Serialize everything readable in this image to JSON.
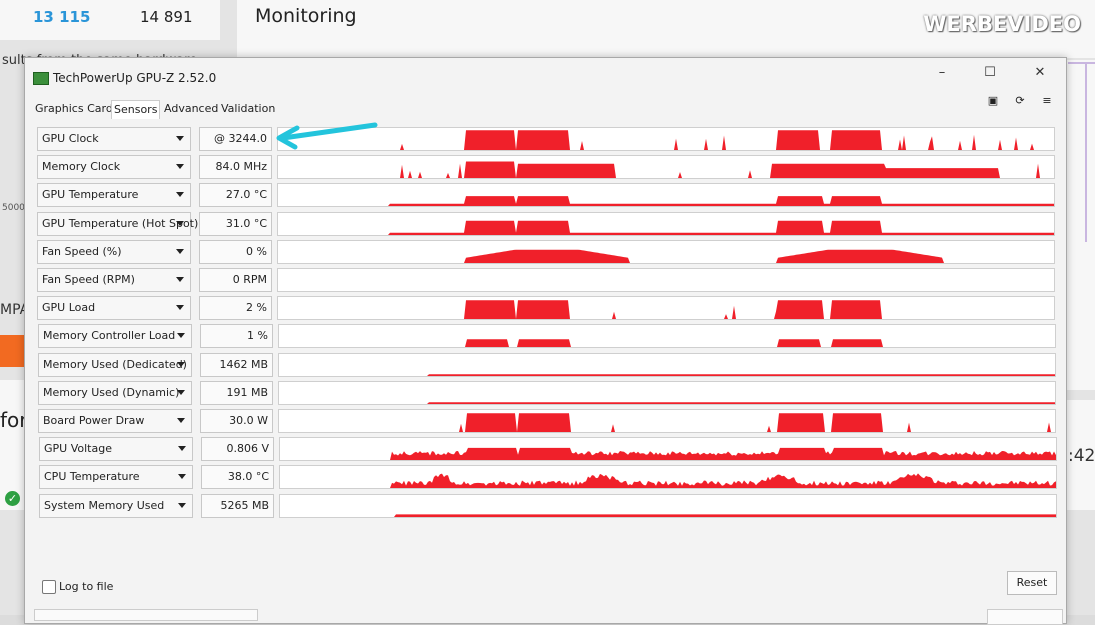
{
  "background": {
    "score_left": "13 115",
    "score_right": "14 891",
    "results_text": "sults from the same hardware",
    "section_title": "Monitoring",
    "axis_label": "5000",
    "mpa_text": "MPA",
    "for_text": "for",
    "time_text": ":42",
    "watermark": "WERBEVIDEO"
  },
  "window": {
    "title": "TechPowerUp GPU-Z 2.52.0",
    "minimize_icon": "minimize-icon",
    "maximize_icon": "maximize-icon",
    "close_icon": "close-icon"
  },
  "tabs": [
    {
      "label": "Graphics Card"
    },
    {
      "label": "Sensors"
    },
    {
      "label": "Advanced"
    },
    {
      "label": "Validation"
    }
  ],
  "toolbar": [
    "camera-icon",
    "refresh-icon",
    "menu-icon"
  ],
  "sensors": [
    {
      "label": "GPU Clock",
      "value": "@ 3244.0"
    },
    {
      "label": "Memory Clock",
      "value": "84.0 MHz"
    },
    {
      "label": "GPU Temperature",
      "value": "27.0 °C"
    },
    {
      "label": "GPU Temperature (Hot Spot)",
      "value": "31.0 °C"
    },
    {
      "label": "Fan Speed (%)",
      "value": "0 %"
    },
    {
      "label": "Fan Speed (RPM)",
      "value": "0 RPM"
    },
    {
      "label": "GPU Load",
      "value": "2 %"
    },
    {
      "label": "Memory Controller Load",
      "value": "1 %"
    },
    {
      "label": "Memory Used (Dedicated)",
      "value": "1462 MB"
    },
    {
      "label": "Memory Used (Dynamic)",
      "value": "191 MB"
    },
    {
      "label": "Board Power Draw",
      "value": "30.0 W"
    },
    {
      "label": "GPU Voltage",
      "value": "0.806 V"
    },
    {
      "label": "CPU Temperature",
      "value": "38.0 °C"
    },
    {
      "label": "System Memory Used",
      "value": "5265 MB"
    }
  ],
  "graph_color": "#f0202a",
  "annotation_color": "#23c4dc",
  "footer": {
    "log_label": "Log to file",
    "reset_label": "Reset"
  }
}
